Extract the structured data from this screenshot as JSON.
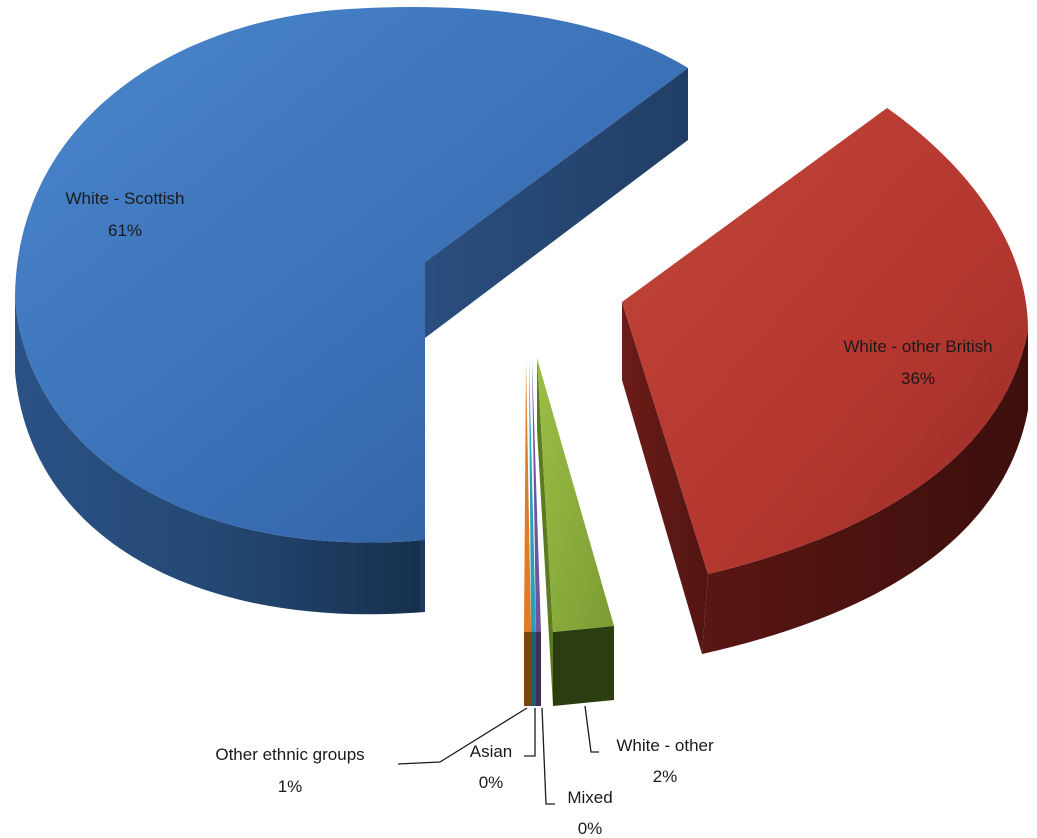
{
  "chart_data": {
    "type": "pie",
    "style": "3d-exploded",
    "title": "",
    "legend": "none",
    "slices": [
      {
        "name": "White - Scottish",
        "value": 61,
        "label": "61%",
        "color": "#3a6fb5"
      },
      {
        "name": "White - other British",
        "value": 36,
        "label": "36%",
        "color": "#b3372f"
      },
      {
        "name": "White - other",
        "value": 2,
        "label": "2%",
        "color": "#8aab3c"
      },
      {
        "name": "Mixed",
        "value": 0,
        "label": "0%",
        "color": "#6e55a0"
      },
      {
        "name": "Asian",
        "value": 0,
        "label": "0%",
        "color": "#2f9fb8"
      },
      {
        "name": "Other ethnic groups",
        "value": 1,
        "label": "1%",
        "color": "#e07b26"
      }
    ]
  }
}
